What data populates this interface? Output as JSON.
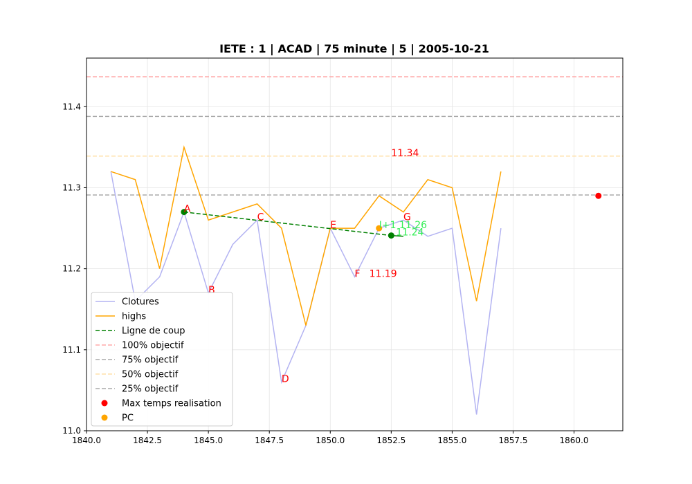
{
  "chart_data": {
    "type": "line",
    "title": "IETE : 1 | ACAD | 75 minute | 5 | 2005-10-21",
    "xlim": [
      1840,
      1862
    ],
    "ylim": [
      11.0,
      11.46
    ],
    "grid": true,
    "legend_position": "lower-left",
    "x_ticks": [
      1840,
      1842.5,
      1845,
      1847.5,
      1850,
      1852.5,
      1855,
      1857.5,
      1860
    ],
    "x_tick_labels": [
      "1840.0",
      "1842.5",
      "1845.0",
      "1847.5",
      "1850.0",
      "1852.5",
      "1855.0",
      "1857.5",
      "1860.0"
    ],
    "y_ticks": [
      11.0,
      11.1,
      11.2,
      11.3,
      11.4
    ],
    "y_tick_labels": [
      "11.0",
      "11.1",
      "11.2",
      "11.3",
      "11.4"
    ],
    "series": [
      {
        "name": "Clotures",
        "kind": "line",
        "color": "#b3b3f2",
        "x": [
          1841,
          1842,
          1843,
          1844,
          1845,
          1846,
          1847,
          1848,
          1849,
          1850,
          1851,
          1852,
          1853,
          1854,
          1855,
          1856,
          1857
        ],
        "y": [
          11.32,
          11.16,
          11.19,
          11.27,
          11.17,
          11.23,
          11.26,
          11.06,
          11.13,
          11.25,
          11.19,
          11.25,
          11.26,
          11.24,
          11.25,
          11.02,
          11.25
        ]
      },
      {
        "name": "highs",
        "kind": "line",
        "color": "#ffa500",
        "x": [
          1841,
          1842,
          1843,
          1844,
          1845,
          1846,
          1847,
          1848,
          1849,
          1850,
          1851,
          1852,
          1853,
          1854,
          1855,
          1856,
          1857
        ],
        "y": [
          11.32,
          11.31,
          11.2,
          11.35,
          11.26,
          11.27,
          11.28,
          11.25,
          11.13,
          11.25,
          11.25,
          11.29,
          11.27,
          11.31,
          11.3,
          11.16,
          11.32
        ]
      },
      {
        "name": "Ligne de coup",
        "kind": "dashed-line",
        "color": "#008000",
        "x": [
          1844,
          1852.5
        ],
        "y": [
          11.27,
          11.241
        ]
      }
    ],
    "extra_line": {
      "x": [
        1852.5,
        1853
      ],
      "y": [
        11.241,
        11.24
      ],
      "color": "#008000"
    },
    "green_points": [
      {
        "x": 1844,
        "y": 11.27
      },
      {
        "x": 1852.5,
        "y": 11.241
      }
    ],
    "hlines": [
      {
        "name": "100% objectif",
        "y": 11.437,
        "color": "#ffaaaa"
      },
      {
        "name": "75% objectif",
        "y": 11.388,
        "color": "#aaaaaa"
      },
      {
        "name": "50% objectif",
        "y": 11.339,
        "color": "#ffe0a8"
      },
      {
        "name": "25% objectif",
        "y": 11.291,
        "color": "#aaaaaa"
      }
    ],
    "scatter": [
      {
        "name": "Max temps realisation",
        "color": "#ff0000",
        "x": 1861,
        "y": 11.29
      },
      {
        "name": "PC",
        "color": "#ffa500",
        "x": 1852,
        "y": 11.25
      }
    ],
    "annotations": [
      {
        "text": "A",
        "x": 1844,
        "y": 11.27,
        "color": "#ff0000"
      },
      {
        "text": "B",
        "x": 1845,
        "y": 11.17,
        "color": "#ff0000"
      },
      {
        "text": "C",
        "x": 1847,
        "y": 11.26,
        "color": "#ff0000"
      },
      {
        "text": "D",
        "x": 1848,
        "y": 11.06,
        "color": "#ff0000"
      },
      {
        "text": "E",
        "x": 1850,
        "y": 11.25,
        "color": "#ff0000"
      },
      {
        "text": "F",
        "x": 1851,
        "y": 11.19,
        "color": "#ff0000"
      },
      {
        "text": "G",
        "x": 1853,
        "y": 11.26,
        "color": "#ff0000"
      },
      {
        "text": "11.34",
        "x": 1852.5,
        "y": 11.339,
        "color": "#ff0000"
      },
      {
        "text": "11.19",
        "x": 1851.6,
        "y": 11.19,
        "color": "#ff0000"
      },
      {
        "text": "I+1 11.26",
        "x": 1852,
        "y": 11.25,
        "color": "#33ee55"
      },
      {
        "text": "11.24",
        "x": 1852.7,
        "y": 11.241,
        "color": "#33ee55"
      }
    ],
    "legend": [
      {
        "label": "Clotures",
        "kind": "line",
        "color": "#b3b3f2"
      },
      {
        "label": "highs",
        "kind": "line",
        "color": "#ffa500"
      },
      {
        "label": "Ligne de coup",
        "kind": "dashed",
        "color": "#008000"
      },
      {
        "label": "100% objectif",
        "kind": "dashed",
        "color": "#ffaaaa"
      },
      {
        "label": "75% objectif",
        "kind": "dashed",
        "color": "#aaaaaa"
      },
      {
        "label": "50% objectif",
        "kind": "dashed",
        "color": "#ffe0a8"
      },
      {
        "label": "25% objectif",
        "kind": "dashed",
        "color": "#aaaaaa"
      },
      {
        "label": "Max temps realisation",
        "kind": "dot",
        "color": "#ff0000"
      },
      {
        "label": "PC",
        "kind": "dot",
        "color": "#ffa500"
      }
    ]
  }
}
